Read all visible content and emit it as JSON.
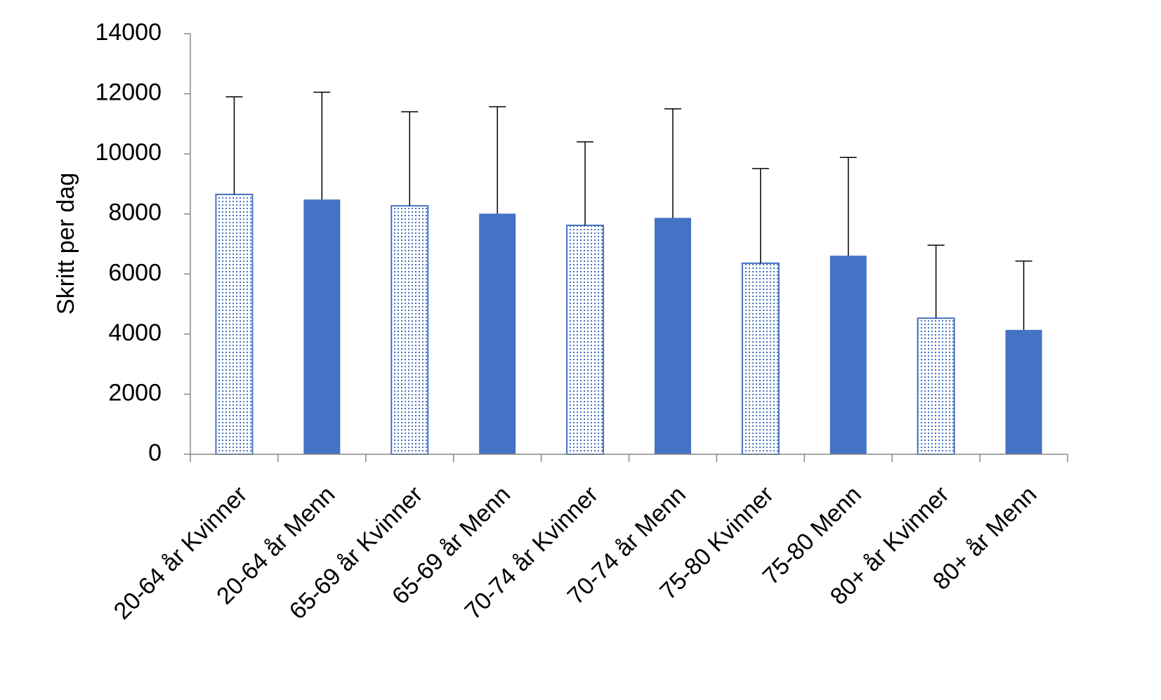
{
  "chart_data": {
    "type": "bar",
    "y_label": "Skritt per dag",
    "categories": [
      "20-64 år Kvinner",
      "20-64 år Menn",
      "65-69 år Kvinner",
      "65-69 år Menn",
      "70-74 år Kvinner",
      "70-74 år Menn",
      "75-80 Kvinner",
      "75-80 Menn",
      "80+ år Kvinner",
      "80+ år Menn"
    ],
    "values": [
      8650,
      8480,
      8270,
      8010,
      7620,
      7870,
      6360,
      6610,
      4530,
      4140
    ],
    "errors": [
      3250,
      3570,
      3130,
      3560,
      2780,
      3630,
      3150,
      3270,
      2430,
      2290
    ],
    "fills": [
      "dotted",
      "solid",
      "dotted",
      "solid",
      "dotted",
      "solid",
      "dotted",
      "solid",
      "dotted",
      "solid"
    ],
    "color": "#4472c4",
    "ylim": [
      0,
      14000
    ],
    "yticks": [
      0,
      2000,
      4000,
      6000,
      8000,
      10000,
      12000,
      14000
    ],
    "grid": false
  }
}
